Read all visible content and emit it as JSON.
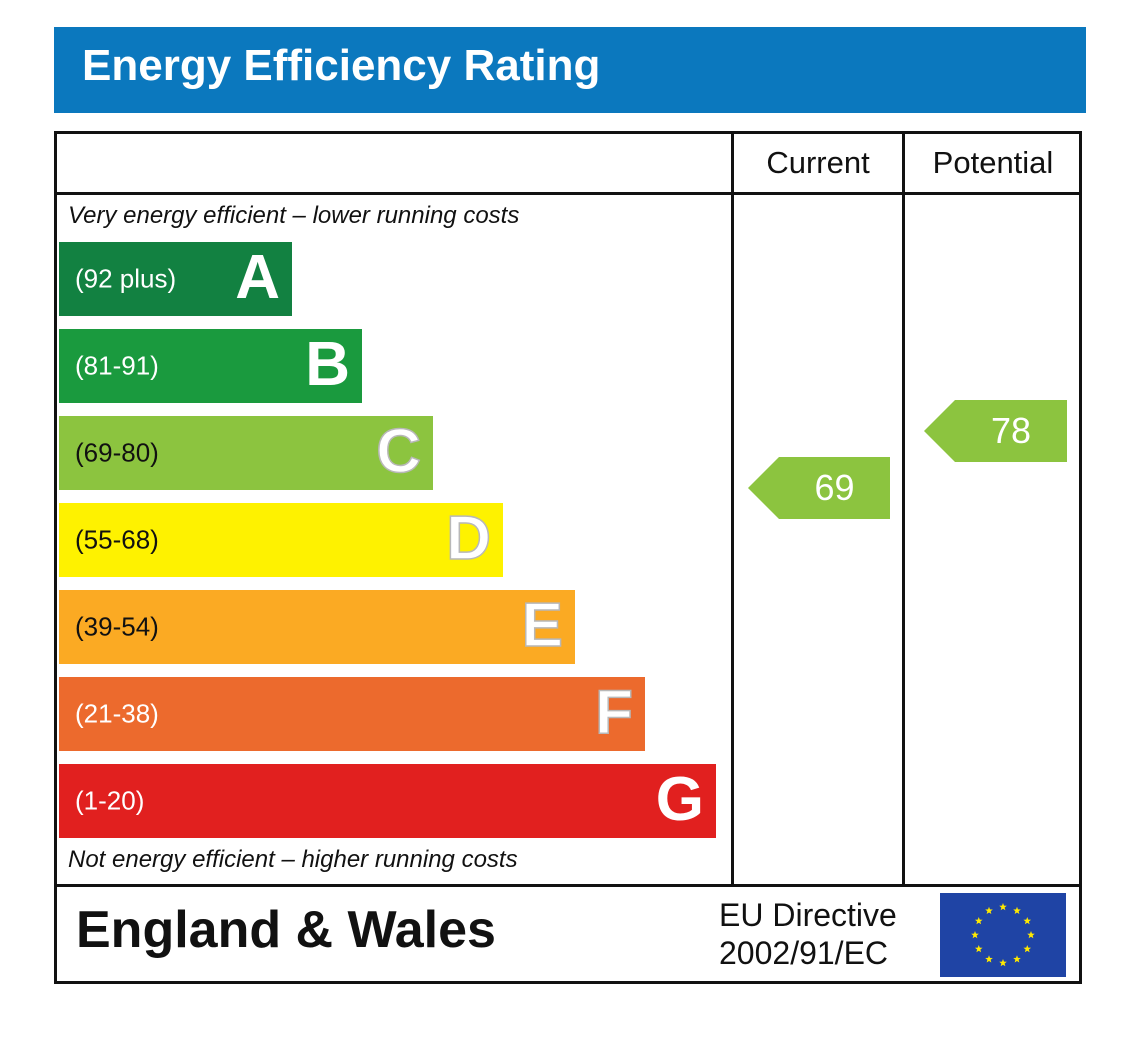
{
  "title": "Energy Efficiency Rating",
  "columns": {
    "current": "Current",
    "potential": "Potential"
  },
  "notes": {
    "top": "Very energy efficient – lower running costs",
    "bottom": "Not energy efficient – higher running costs"
  },
  "footer": {
    "region": "England & Wales",
    "directive_line1": "EU Directive",
    "directive_line2": "2002/91/EC",
    "flag_icon": "eu-flag-icon"
  },
  "chart_data": {
    "type": "bar",
    "categories": [
      "A",
      "B",
      "C",
      "D",
      "E",
      "F",
      "G"
    ],
    "bands": [
      {
        "letter": "A",
        "range": "(92 plus)",
        "color": "#128141",
        "min": 92,
        "max": 100
      },
      {
        "letter": "B",
        "range": "(81-91)",
        "color": "#1a9a3e",
        "min": 81,
        "max": 91
      },
      {
        "letter": "C",
        "range": "(69-80)",
        "color": "#8cc43f",
        "min": 69,
        "max": 80
      },
      {
        "letter": "D",
        "range": "(55-68)",
        "color": "#fef200",
        "min": 55,
        "max": 68
      },
      {
        "letter": "E",
        "range": "(39-54)",
        "color": "#fbaa23",
        "min": 39,
        "max": 54
      },
      {
        "letter": "F",
        "range": "(21-38)",
        "color": "#ec6a2d",
        "min": 21,
        "max": 38
      },
      {
        "letter": "G",
        "range": "(1-20)",
        "color": "#e1201f",
        "min": 1,
        "max": 20
      }
    ],
    "current": {
      "value": "69",
      "band": "C",
      "color": "#8cc43f"
    },
    "potential": {
      "value": "78",
      "band": "C",
      "color": "#8cc43f"
    }
  }
}
